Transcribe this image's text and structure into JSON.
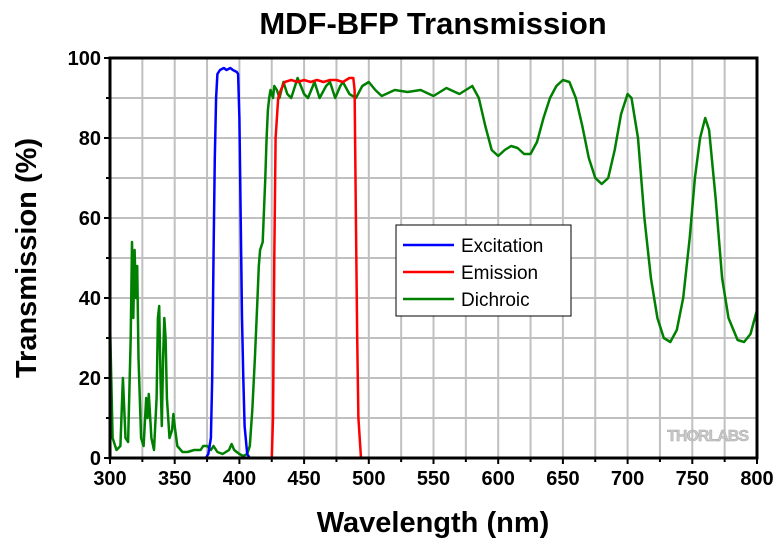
{
  "chart_data": {
    "type": "line",
    "title": "MDF-BFP Transmission",
    "xlabel": "Wavelength (nm)",
    "ylabel": "Transmission (%)",
    "xlim": [
      300,
      800
    ],
    "ylim": [
      0,
      100
    ],
    "xticks": [
      300,
      350,
      400,
      450,
      500,
      550,
      600,
      650,
      700,
      750,
      800
    ],
    "yticks": [
      0,
      20,
      40,
      60,
      80,
      100
    ],
    "xtick_labels": [
      "300",
      "350",
      "400",
      "450",
      "500",
      "550",
      "600",
      "650",
      "700",
      "750",
      "800"
    ],
    "ytick_labels": [
      "0",
      "20",
      "40",
      "60",
      "80",
      "100"
    ],
    "grid": true,
    "legend_position": "center",
    "watermark": "THORLABS",
    "series": [
      {
        "name": "Excitation",
        "color": "#0000ff",
        "x": [
          300,
          374,
          376,
          378,
          379,
          380,
          381,
          382,
          383,
          385,
          388,
          390,
          393,
          395,
          398,
          399,
          400,
          401,
          402,
          403,
          404,
          406,
          408,
          800
        ],
        "y": [
          0,
          0,
          1,
          5,
          20,
          50,
          75,
          90,
          96,
          97,
          97.5,
          97,
          97.5,
          97,
          96.5,
          96,
          85,
          60,
          35,
          20,
          8,
          1,
          0,
          0
        ]
      },
      {
        "name": "Emission",
        "color": "#ff0000",
        "x": [
          300,
          425,
          426,
          427,
          428,
          430,
          432,
          435,
          440,
          445,
          450,
          455,
          460,
          465,
          470,
          475,
          480,
          485,
          488,
          489,
          490,
          491,
          492,
          494,
          800
        ],
        "y": [
          0,
          0,
          10,
          50,
          80,
          90,
          92,
          94,
          94.5,
          94,
          94.5,
          94,
          94.5,
          94,
          94.5,
          94.5,
          94,
          95,
          95,
          92,
          60,
          30,
          10,
          0,
          0
        ]
      },
      {
        "name": "Dichroic",
        "color": "#008000",
        "x": [
          300,
          302,
          305,
          308,
          310,
          312,
          314,
          316,
          317,
          318,
          319,
          320,
          321,
          322,
          324,
          326,
          328,
          329,
          330,
          332,
          334,
          336,
          337,
          338,
          339,
          340,
          341,
          342,
          343,
          344,
          346,
          348,
          349,
          350,
          352,
          356,
          360,
          365,
          370,
          372,
          375,
          378,
          380,
          383,
          387,
          392,
          394,
          396,
          400,
          403,
          406,
          408,
          410,
          412,
          414,
          415,
          416,
          418,
          419,
          420,
          421,
          422,
          423,
          424,
          425,
          426,
          427,
          429,
          431,
          434,
          437,
          440,
          445,
          450,
          453,
          458,
          462,
          467,
          470,
          474,
          478,
          480,
          485,
          490,
          495,
          500,
          505,
          510,
          520,
          530,
          540,
          550,
          560,
          570,
          580,
          585,
          590,
          595,
          600,
          605,
          610,
          615,
          620,
          625,
          630,
          635,
          640,
          645,
          650,
          655,
          660,
          665,
          670,
          675,
          680,
          685,
          690,
          695,
          700,
          703,
          708,
          713,
          718,
          723,
          728,
          733,
          738,
          743,
          748,
          752,
          756,
          760,
          763,
          768,
          773,
          778,
          785,
          790,
          795,
          800
        ],
        "y": [
          34,
          5,
          2,
          3,
          20,
          5,
          4,
          30,
          54,
          35,
          52,
          40,
          48,
          25,
          5,
          3,
          15,
          10,
          16,
          5,
          2,
          15,
          35,
          38,
          20,
          8,
          25,
          35,
          30,
          15,
          5,
          7,
          11,
          8,
          3,
          1.5,
          1.5,
          2,
          2,
          3,
          3,
          2,
          3,
          1.5,
          1,
          2,
          3.5,
          2,
          1,
          0.5,
          1,
          3,
          12,
          25,
          40,
          48,
          52,
          54,
          62,
          70,
          80,
          87,
          90,
          92,
          91,
          90,
          93,
          92,
          90,
          94,
          91,
          90,
          95,
          91,
          90,
          94,
          90,
          93,
          94,
          90,
          93,
          94,
          91,
          90,
          93,
          94,
          92,
          90.5,
          92,
          91.5,
          92,
          90.5,
          92.5,
          91,
          93,
          90,
          83,
          77,
          75.5,
          77,
          78,
          77.5,
          76,
          76,
          79,
          85,
          90,
          93,
          94.5,
          94,
          90,
          83,
          75,
          70,
          68.5,
          70,
          77,
          86,
          91,
          90,
          80,
          60,
          45,
          35,
          30,
          29,
          32,
          40,
          55,
          70,
          80,
          85,
          82,
          65,
          45,
          35,
          29.5,
          29,
          31,
          37
        ]
      }
    ]
  }
}
